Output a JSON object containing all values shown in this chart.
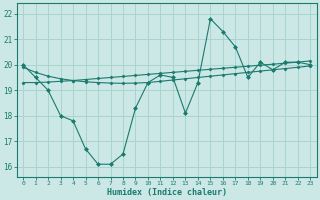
{
  "x": [
    0,
    1,
    2,
    3,
    4,
    5,
    6,
    7,
    8,
    9,
    10,
    11,
    12,
    13,
    14,
    15,
    16,
    17,
    18,
    19,
    20,
    21,
    22,
    23
  ],
  "line1": [
    20.0,
    19.5,
    19.0,
    18.0,
    17.8,
    16.7,
    16.1,
    16.1,
    16.5,
    18.3,
    19.3,
    19.6,
    19.5,
    18.1,
    19.3,
    21.8,
    21.3,
    20.7,
    19.5,
    20.1,
    19.8,
    20.1,
    20.1,
    20.0
  ],
  "line2": [
    19.9,
    19.7,
    19.55,
    19.45,
    19.38,
    19.33,
    19.3,
    19.28,
    19.27,
    19.28,
    19.3,
    19.35,
    19.4,
    19.45,
    19.5,
    19.55,
    19.6,
    19.65,
    19.7,
    19.75,
    19.8,
    19.85,
    19.9,
    19.95
  ],
  "line3": [
    19.3,
    19.3,
    19.32,
    19.35,
    19.38,
    19.42,
    19.46,
    19.5,
    19.54,
    19.58,
    19.62,
    19.66,
    19.7,
    19.74,
    19.78,
    19.82,
    19.86,
    19.9,
    19.94,
    19.98,
    20.02,
    20.06,
    20.1,
    20.15
  ],
  "line_color": "#1a7a6e",
  "bg_color": "#cce8e6",
  "grid_color": "#aad4d0",
  "xlabel": "Humidex (Indice chaleur)",
  "ylim": [
    15.6,
    22.4
  ],
  "xlim": [
    -0.5,
    23.5
  ],
  "yticks": [
    16,
    17,
    18,
    19,
    20,
    21,
    22
  ],
  "xticks": [
    0,
    1,
    2,
    3,
    4,
    5,
    6,
    7,
    8,
    9,
    10,
    11,
    12,
    13,
    14,
    15,
    16,
    17,
    18,
    19,
    20,
    21,
    22,
    23
  ]
}
